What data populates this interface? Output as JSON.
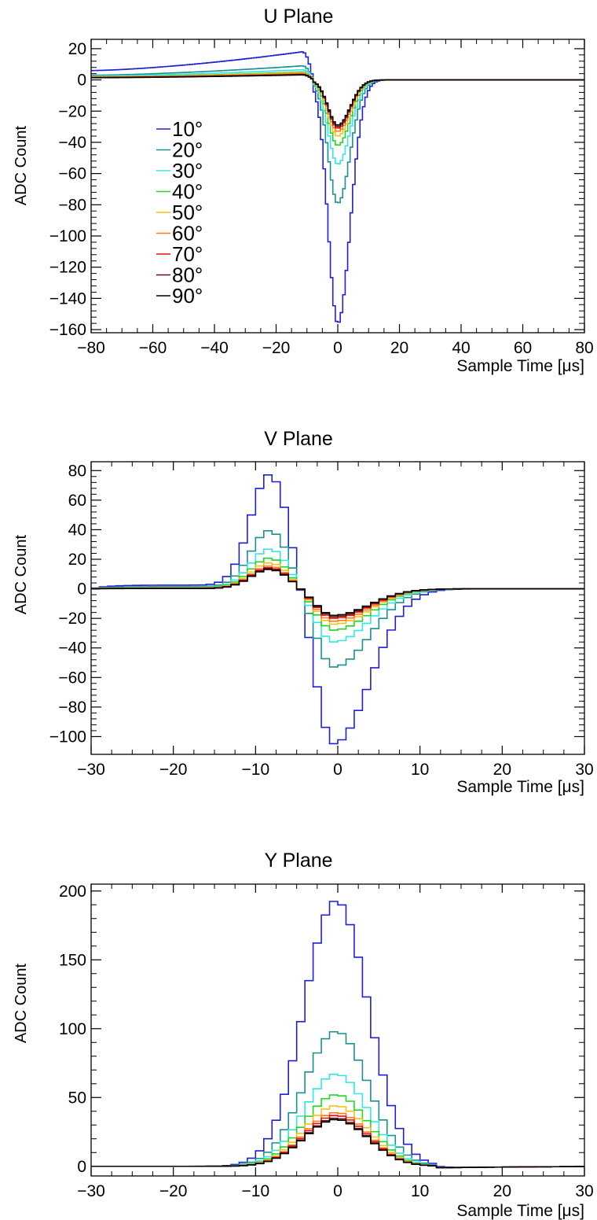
{
  "chart_data": [
    {
      "type": "line",
      "title": "U Plane",
      "xlabel": "Sample Time [μs]",
      "ylabel": "ADC Count",
      "xlim": [
        -80,
        80
      ],
      "ylim": [
        -162,
        26
      ],
      "x_ticks": [
        -80,
        -60,
        -40,
        -20,
        0,
        20,
        40,
        60,
        80
      ],
      "x_tick_labels": [
        "−80",
        "−60",
        "−40",
        "−20",
        "0",
        "20",
        "40",
        "60",
        "80"
      ],
      "y_ticks": [
        -160,
        -140,
        -120,
        -100,
        -80,
        -60,
        -40,
        -20,
        0,
        20
      ],
      "y_tick_labels": [
        "−160",
        "−140",
        "−120",
        "−100",
        "−80",
        "−60",
        "−40",
        "−20",
        "0",
        "20"
      ],
      "legend": "left",
      "grid": false,
      "series": [
        {
          "name": "10°",
          "color": "#1f1fd6",
          "pre_start": 6,
          "pre_peak": 18,
          "neg_amp": 156
        },
        {
          "name": "20°",
          "color": "#1a9191",
          "pre_start": 3,
          "pre_peak": 9,
          "neg_amp": 79
        },
        {
          "name": "30°",
          "color": "#33e6e6",
          "pre_start": 2.5,
          "pre_peak": 6.5,
          "neg_amp": 54
        },
        {
          "name": "40°",
          "color": "#22d622",
          "pre_start": 2,
          "pre_peak": 5,
          "neg_amp": 42
        },
        {
          "name": "50°",
          "color": "#f2c21a",
          "pre_start": 2,
          "pre_peak": 4.5,
          "neg_amp": 36
        },
        {
          "name": "60°",
          "color": "#ff7a1a",
          "pre_start": 1.8,
          "pre_peak": 4,
          "neg_amp": 33
        },
        {
          "name": "70°",
          "color": "#e60f0f",
          "pre_start": 1.6,
          "pre_peak": 3.6,
          "neg_amp": 31
        },
        {
          "name": "80°",
          "color": "#6b0f0f",
          "pre_start": 1.5,
          "pre_peak": 3.4,
          "neg_amp": 30
        },
        {
          "name": "90°",
          "color": "#000000",
          "pre_start": 1.4,
          "pre_peak": 3.2,
          "neg_amp": 29
        }
      ]
    },
    {
      "type": "line",
      "title": "V Plane",
      "xlabel": "Sample Time [μs]",
      "ylabel": "ADC Count",
      "xlim": [
        -30,
        30
      ],
      "ylim": [
        -112,
        86
      ],
      "x_ticks": [
        -30,
        -20,
        -10,
        0,
        10,
        20,
        30
      ],
      "x_tick_labels": [
        "−30",
        "−20",
        "−10",
        "0",
        "10",
        "20",
        "30"
      ],
      "y_ticks": [
        -100,
        -80,
        -60,
        -40,
        -20,
        0,
        20,
        40,
        60,
        80
      ],
      "y_tick_labels": [
        "−100",
        "−80",
        "−60",
        "−40",
        "−20",
        "0",
        "20",
        "40",
        "60",
        "80"
      ],
      "grid": false,
      "series": [
        {
          "name": "10°",
          "color": "#1f1fd6",
          "pos_amp": 75,
          "neg_amp": 105,
          "baseline": 2.5
        },
        {
          "name": "20°",
          "color": "#1a9191",
          "pos_amp": 38,
          "neg_amp": 53,
          "baseline": 1.5
        },
        {
          "name": "30°",
          "color": "#33e6e6",
          "pos_amp": 26,
          "neg_amp": 36,
          "baseline": 1
        },
        {
          "name": "40°",
          "color": "#22d622",
          "pos_amp": 20,
          "neg_amp": 28,
          "baseline": 0.8
        },
        {
          "name": "50°",
          "color": "#f2c21a",
          "pos_amp": 17,
          "neg_amp": 24,
          "baseline": 0.6
        },
        {
          "name": "60°",
          "color": "#ff7a1a",
          "pos_amp": 15,
          "neg_amp": 22,
          "baseline": 0.5
        },
        {
          "name": "70°",
          "color": "#e60f0f",
          "pos_amp": 14,
          "neg_amp": 20,
          "baseline": 0.4
        },
        {
          "name": "80°",
          "color": "#6b0f0f",
          "pos_amp": 13.5,
          "neg_amp": 19,
          "baseline": 0.3
        },
        {
          "name": "90°",
          "color": "#000000",
          "pos_amp": 13,
          "neg_amp": 18,
          "baseline": 0.2
        }
      ]
    },
    {
      "type": "line",
      "title": "Y Plane",
      "xlabel": "Sample Time [μs]",
      "ylabel": "ADC Count",
      "xlim": [
        -30,
        30
      ],
      "ylim": [
        -7,
        205
      ],
      "x_ticks": [
        -30,
        -20,
        -10,
        0,
        10,
        20,
        30
      ],
      "x_tick_labels": [
        "−30",
        "−20",
        "−10",
        "0",
        "10",
        "20",
        "30"
      ],
      "y_ticks": [
        0,
        50,
        100,
        150,
        200
      ],
      "y_tick_labels": [
        "0",
        "50",
        "100",
        "150",
        "200"
      ],
      "grid": false,
      "series": [
        {
          "name": "10°",
          "color": "#1f1fd6",
          "peak": 193
        },
        {
          "name": "20°",
          "color": "#1a9191",
          "peak": 98
        },
        {
          "name": "30°",
          "color": "#33e6e6",
          "peak": 67
        },
        {
          "name": "40°",
          "color": "#22d622",
          "peak": 52
        },
        {
          "name": "50°",
          "color": "#f2c21a",
          "peak": 44
        },
        {
          "name": "60°",
          "color": "#ff7a1a",
          "peak": 39
        },
        {
          "name": "70°",
          "color": "#e60f0f",
          "peak": 37
        },
        {
          "name": "80°",
          "color": "#6b0f0f",
          "peak": 35
        },
        {
          "name": "90°",
          "color": "#000000",
          "peak": 34
        }
      ]
    }
  ]
}
